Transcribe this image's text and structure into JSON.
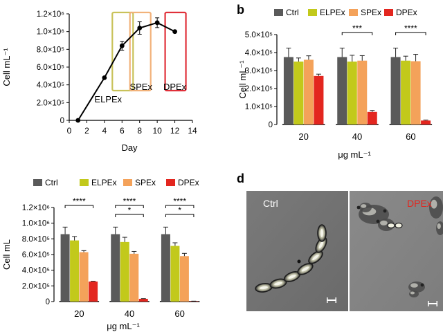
{
  "panels": {
    "b_letter": "b",
    "d_letter": "d"
  },
  "colors": {
    "Ctrl": "#5a5a5a",
    "ELPEx": "#c2c91b",
    "SPEx": "#f4a25a",
    "DPEx": "#e3261f",
    "boxELPEx": "#c9c25a",
    "boxSPEx": "#f2b27a",
    "boxDPEx": "#e0303a"
  },
  "chart_data": [
    {
      "panel": "a",
      "type": "line",
      "xlabel": "Day",
      "ylabel": "Cell mL⁻¹",
      "xlim": [
        0,
        14
      ],
      "ylim": [
        0,
        1200000
      ],
      "xticks": [
        0,
        2,
        4,
        6,
        8,
        10,
        12,
        14
      ],
      "xtick_labels": [
        "0",
        "2",
        "4",
        "6",
        "8",
        "10",
        "12",
        "14"
      ],
      "yticks": [
        0,
        200000,
        400000,
        600000,
        800000,
        1000000,
        1200000
      ],
      "ytick_labels": [
        "0",
        "2.0×10⁵",
        "4.0×10⁵",
        "6.0×10⁵",
        "8.0×10⁵",
        "1.0×10⁶",
        "1.2×10⁶"
      ],
      "x": [
        1,
        4,
        6,
        8,
        10,
        12
      ],
      "y": [
        0,
        480000,
        840000,
        1040000,
        1100000,
        1000000
      ],
      "err": [
        0,
        0,
        50000,
        70000,
        55000,
        0
      ],
      "annotations": [
        {
          "label": "ELPEx",
          "day": 6
        },
        {
          "label": "SPEx",
          "day": 8
        },
        {
          "label": "DPEx",
          "day": 12
        }
      ]
    },
    {
      "panel": "b",
      "type": "bar",
      "xlabel": "μg mL⁻¹",
      "ylabel": "Cell mL⁻¹",
      "categories": [
        "20",
        "40",
        "60"
      ],
      "ylim": [
        0,
        500000
      ],
      "yticks": [
        0,
        100000,
        200000,
        300000,
        400000,
        500000
      ],
      "ytick_labels": [
        "0",
        "1.0×10⁵",
        "2.0×10⁵",
        "3.0×10⁵",
        "4.0×10⁵",
        "5.0×10⁵"
      ],
      "legend": [
        "Ctrl",
        "ELPEx",
        "SPEx",
        "DPEx"
      ],
      "series": [
        {
          "name": "Ctrl",
          "values": [
            375000,
            375000,
            375000
          ],
          "err": [
            50000,
            50000,
            50000
          ]
        },
        {
          "name": "ELPEx",
          "values": [
            350000,
            350000,
            355000
          ],
          "err": [
            20000,
            35000,
            25000
          ]
        },
        {
          "name": "SPEx",
          "values": [
            360000,
            355000,
            352000
          ],
          "err": [
            22000,
            28000,
            38000
          ]
        },
        {
          "name": "DPEx",
          "values": [
            270000,
            70000,
            22000
          ],
          "err": [
            10000,
            8000,
            3000
          ]
        }
      ],
      "significance": [
        {
          "category": 1,
          "label": "***"
        },
        {
          "category": 2,
          "label": "****"
        }
      ]
    },
    {
      "panel": "c",
      "type": "bar",
      "xlabel": "μg mL⁻¹",
      "ylabel": "Cell mL",
      "categories": [
        "20",
        "40",
        "60"
      ],
      "ylim": [
        0,
        1200000
      ],
      "yticks": [
        0,
        200000,
        400000,
        600000,
        800000,
        1000000,
        1200000
      ],
      "ytick_labels": [
        "0",
        "2.0×10⁵",
        "4.0×10⁵",
        "6.0×10⁵",
        "8.0×10⁵",
        "1.0×10⁶",
        "1.2×10⁶"
      ],
      "legend": [
        "Ctrl",
        "ELPEx",
        "SPEx",
        "DPEx"
      ],
      "series": [
        {
          "name": "Ctrl",
          "values": [
            860000,
            860000,
            860000
          ],
          "err": [
            90000,
            90000,
            90000
          ]
        },
        {
          "name": "ELPEx",
          "values": [
            780000,
            760000,
            710000
          ],
          "err": [
            50000,
            60000,
            40000
          ]
        },
        {
          "name": "SPEx",
          "values": [
            630000,
            610000,
            580000
          ],
          "err": [
            20000,
            30000,
            35000
          ]
        },
        {
          "name": "DPEx",
          "values": [
            255000,
            35000,
            5000
          ],
          "err": [
            5000,
            3000,
            1000
          ]
        }
      ],
      "significance": [
        {
          "category": 0,
          "label": "****"
        },
        {
          "category": 1,
          "label": "*"
        },
        {
          "category": 1,
          "label": "****"
        },
        {
          "category": 2,
          "label": "*"
        },
        {
          "category": 2,
          "label": "****"
        }
      ]
    }
  ],
  "micrographs": {
    "left_label": "Ctrl",
    "right_label": "DPEx"
  }
}
